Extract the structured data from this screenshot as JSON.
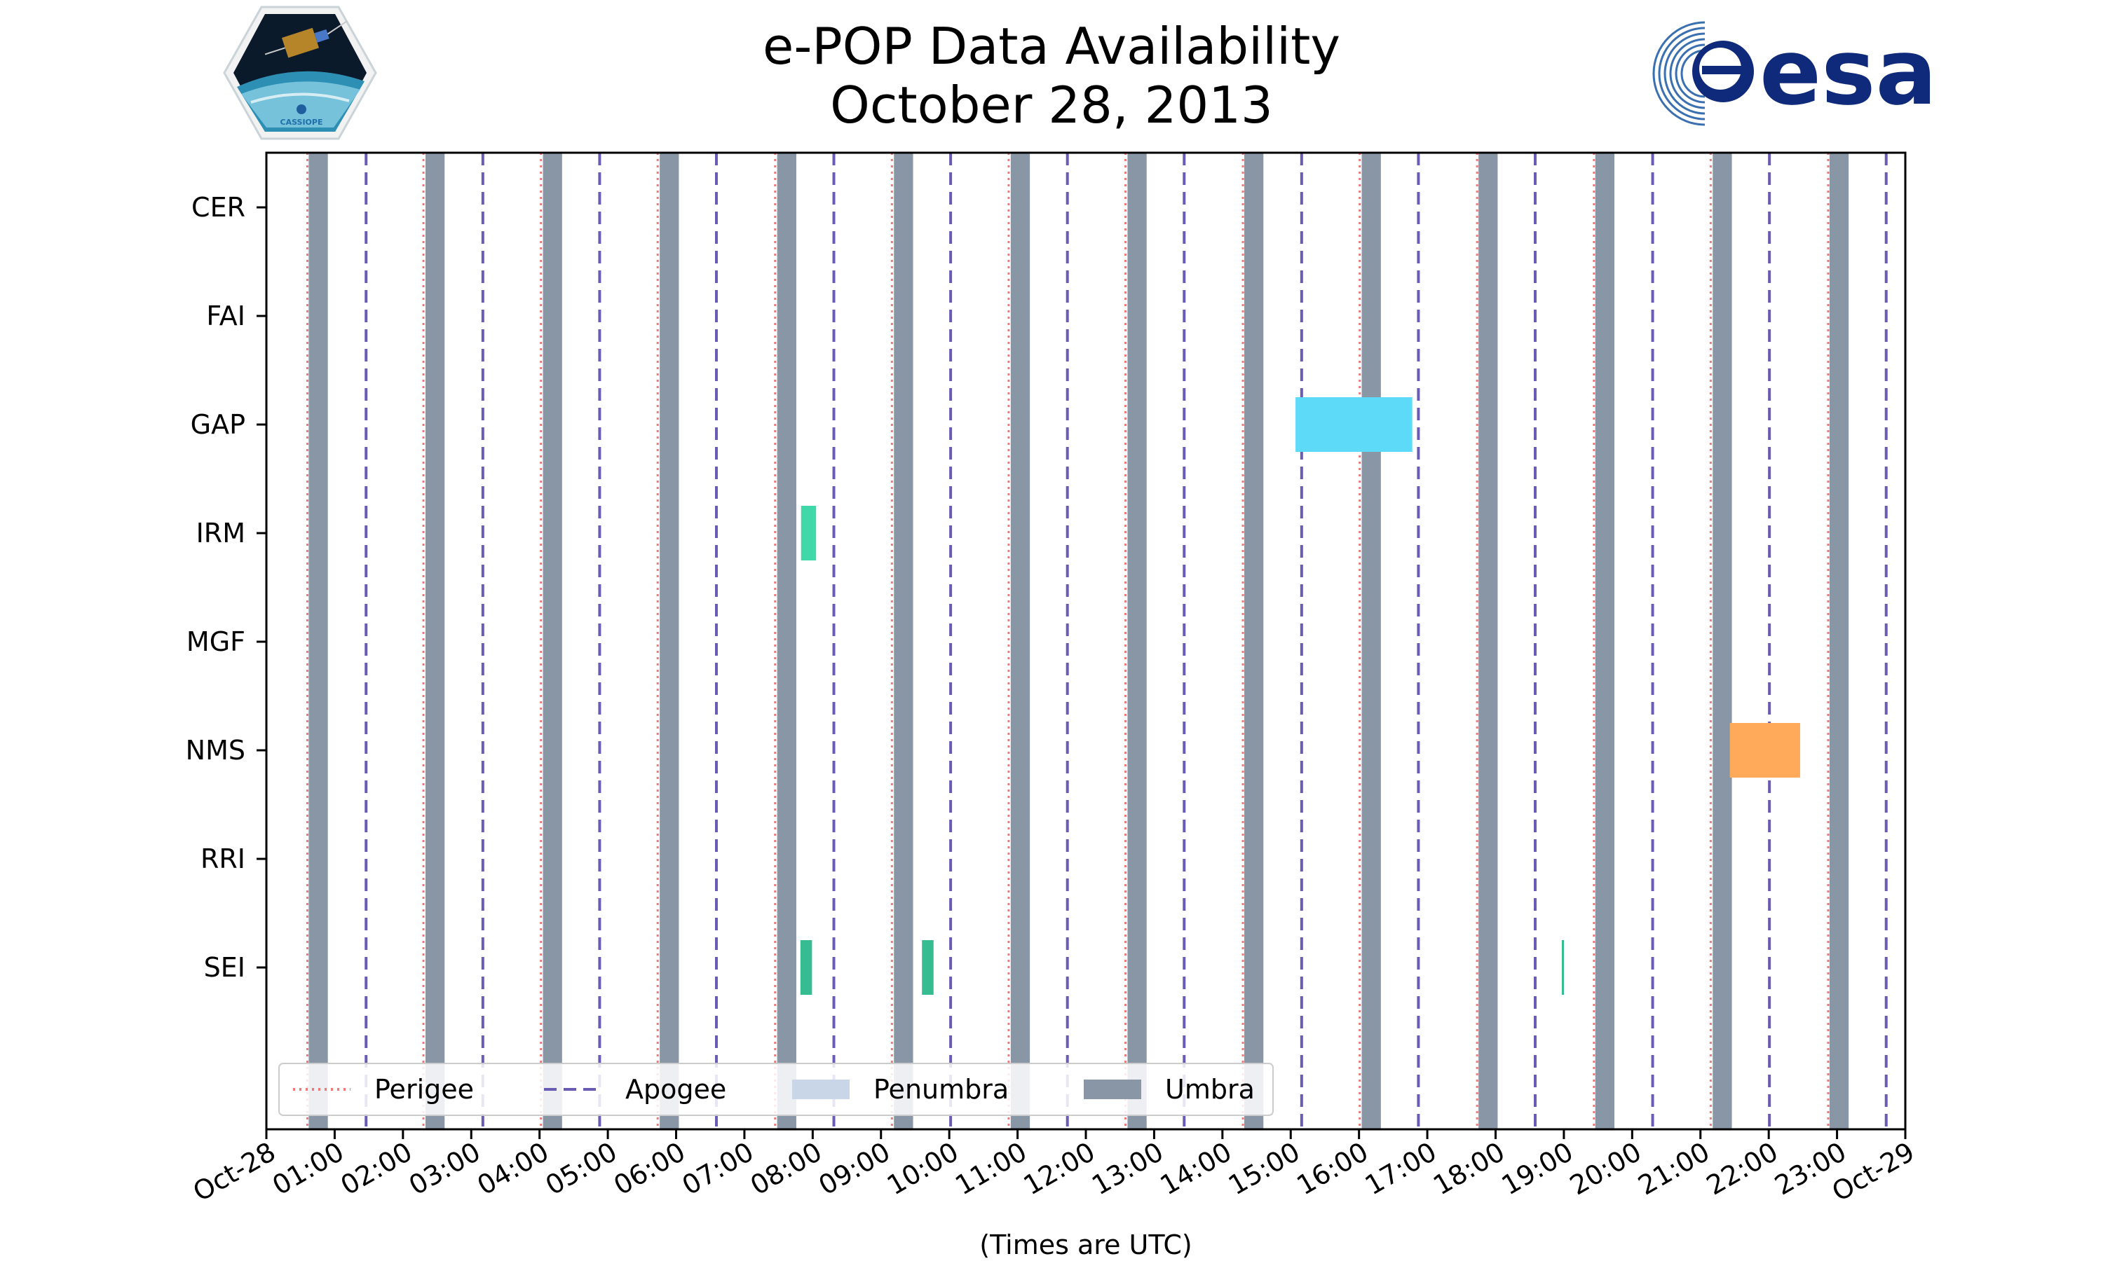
{
  "chart_data": {
    "type": "timeline",
    "title": "e-POP Data Availability",
    "subtitle": "October 28, 2013",
    "xlabel": "(Times are UTC)",
    "ylabel": "",
    "xlim": [
      "Oct-28 00:00",
      "Oct-29 00:00"
    ],
    "x_tick_labels": [
      "Oct-28",
      "01:00",
      "02:00",
      "03:00",
      "04:00",
      "05:00",
      "06:00",
      "07:00",
      "08:00",
      "09:00",
      "10:00",
      "11:00",
      "12:00",
      "13:00",
      "14:00",
      "15:00",
      "16:00",
      "17:00",
      "18:00",
      "19:00",
      "20:00",
      "21:00",
      "22:00",
      "23:00",
      "Oct-29"
    ],
    "instruments": [
      "CER",
      "FAI",
      "GAP",
      "IRM",
      "MGF",
      "NMS",
      "RRI",
      "SEI"
    ],
    "perigee_hours": [
      0.6,
      2.3,
      4.02,
      5.73,
      7.45,
      9.16,
      10.87,
      12.58,
      14.3,
      16.01,
      17.73,
      19.44,
      21.15,
      22.87
    ],
    "apogee_hours": [
      1.46,
      3.17,
      4.88,
      6.59,
      8.31,
      10.02,
      11.73,
      13.44,
      15.16,
      16.87,
      18.58,
      20.3,
      22.01,
      23.72
    ],
    "umbra": [
      [
        0.62,
        0.9
      ],
      [
        2.33,
        2.61
      ],
      [
        4.05,
        4.33
      ],
      [
        5.76,
        6.04
      ],
      [
        7.48,
        7.76
      ],
      [
        9.19,
        9.47
      ],
      [
        10.9,
        11.18
      ],
      [
        12.61,
        12.89
      ],
      [
        14.32,
        14.6
      ],
      [
        16.04,
        16.32
      ],
      [
        17.75,
        18.03
      ],
      [
        19.46,
        19.74
      ],
      [
        21.18,
        21.46
      ],
      [
        22.89,
        23.17
      ]
    ],
    "availability": [
      {
        "instrument": "GAP",
        "start": 15.07,
        "end": 16.78,
        "color": "#5DDAF8"
      },
      {
        "instrument": "IRM",
        "start": 7.83,
        "end": 8.05,
        "color": "#40D8A8"
      },
      {
        "instrument": "NMS",
        "start": 21.43,
        "end": 22.46,
        "color": "#FFAA5A"
      },
      {
        "instrument": "SEI",
        "start": 7.82,
        "end": 7.99,
        "color": "#37BC91"
      },
      {
        "instrument": "SEI",
        "start": 9.6,
        "end": 9.77,
        "color": "#37BC91"
      },
      {
        "instrument": "SEI",
        "start": 18.97,
        "end": 18.99,
        "color": "#37BC91"
      }
    ],
    "legend": {
      "placement": "lower-left",
      "entries": [
        "Perigee",
        "Apogee",
        "Penumbra",
        "Umbra"
      ]
    },
    "colors": {
      "perigee": "#F07878",
      "apogee": "#6A5BB5",
      "penumbra": "#C8D6E8",
      "umbra": "#8896A6"
    }
  },
  "logos": {
    "cassiope_text": "CASSIOPE",
    "esa_text": "esa"
  }
}
